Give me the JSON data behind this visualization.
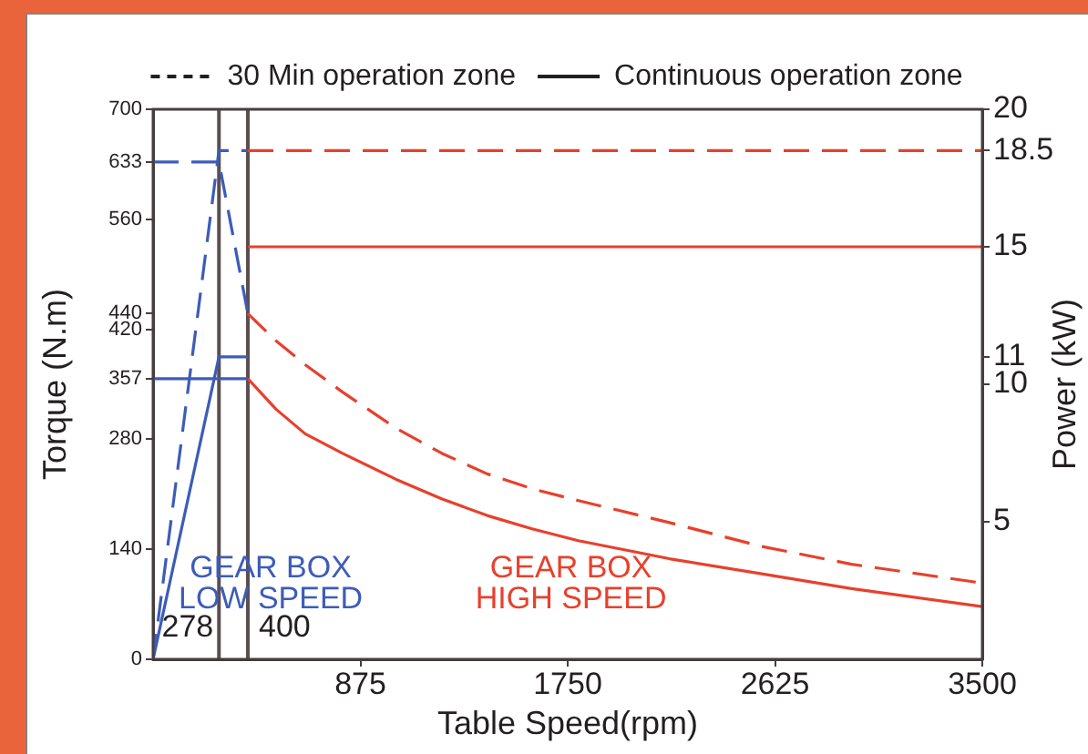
{
  "chart_data": {
    "type": "line",
    "legend": "top",
    "xlabel": "Table Speed(rpm)",
    "ylabel": "Torque (N.m)",
    "y2label": "Power (kW)",
    "xlim": [
      0,
      3500
    ],
    "xticks": [
      875,
      1750,
      2625,
      3500
    ],
    "ylim": [
      0,
      700
    ],
    "yticks": [
      0,
      140,
      280,
      357,
      420,
      440,
      560,
      633,
      700
    ],
    "y2lim": [
      0,
      20
    ],
    "y2ticks": [
      5,
      10,
      11,
      15,
      18.5,
      20
    ],
    "series": [
      {
        "name": "30 Min operation zone",
        "color": "#231f20",
        "line_style": "dashed"
      },
      {
        "name": "Continuous operation zone",
        "color": "#231f20",
        "line_style": "solid"
      },
      {
        "color": "#3d5cb8",
        "line_style": "dashed",
        "x": [
          0,
          278,
          400
        ],
        "values": [
          633,
          633,
          440
        ]
      },
      {
        "color": "#e8402c",
        "line_style": "dashed",
        "x": [
          400,
          520,
          642,
          800,
          1026,
          1220,
          1410,
          1600,
          1795,
          2179,
          2563,
          2948,
          3500
        ],
        "values": [
          440,
          405,
          375,
          340,
          294,
          262,
          236,
          217,
          202,
          174,
          144,
          121,
          97
        ]
      },
      {
        "color": "#3d5cb8",
        "line_style": "solid",
        "x": [
          0,
          400
        ],
        "values": [
          357,
          357
        ]
      },
      {
        "name": "GEAR BOX HIGH SPEED",
        "color": "#e8402c",
        "line_style": "solid",
        "x": [
          400,
          520,
          642,
          800,
          1026,
          1220,
          1410,
          1600,
          1795,
          2179,
          2563,
          2948,
          3500
        ],
        "values": [
          357,
          318,
          287,
          262,
          229,
          204,
          183,
          166,
          151,
          128,
          109,
          90,
          67
        ]
      },
      {
        "color": "#3d5cb8",
        "line_style": "dashed",
        "axis": "y2",
        "x": [
          0,
          278,
          400
        ],
        "values": [
          0,
          18.5,
          18.5
        ]
      },
      {
        "color": "#e8402c",
        "line_style": "dashed",
        "axis": "y2",
        "x": [
          400,
          3500
        ],
        "values": [
          18.5,
          18.5
        ]
      },
      {
        "name": "GEAR BOX LOW SPEED",
        "color": "#3d5cb8",
        "line_style": "solid",
        "axis": "y2",
        "x": [
          0,
          278,
          400
        ],
        "values": [
          0,
          11,
          11
        ]
      },
      {
        "color": "#e8402c",
        "line_style": "solid",
        "axis": "y2",
        "x": [
          400,
          3500
        ],
        "values": [
          15,
          15
        ]
      }
    ],
    "ref_lines": [
      {
        "axis": "x",
        "value": 278,
        "label": "278",
        "color": "#5a4e4e"
      },
      {
        "axis": "x",
        "value": 400,
        "label": "400",
        "color": "#5a4e4e"
      }
    ]
  }
}
